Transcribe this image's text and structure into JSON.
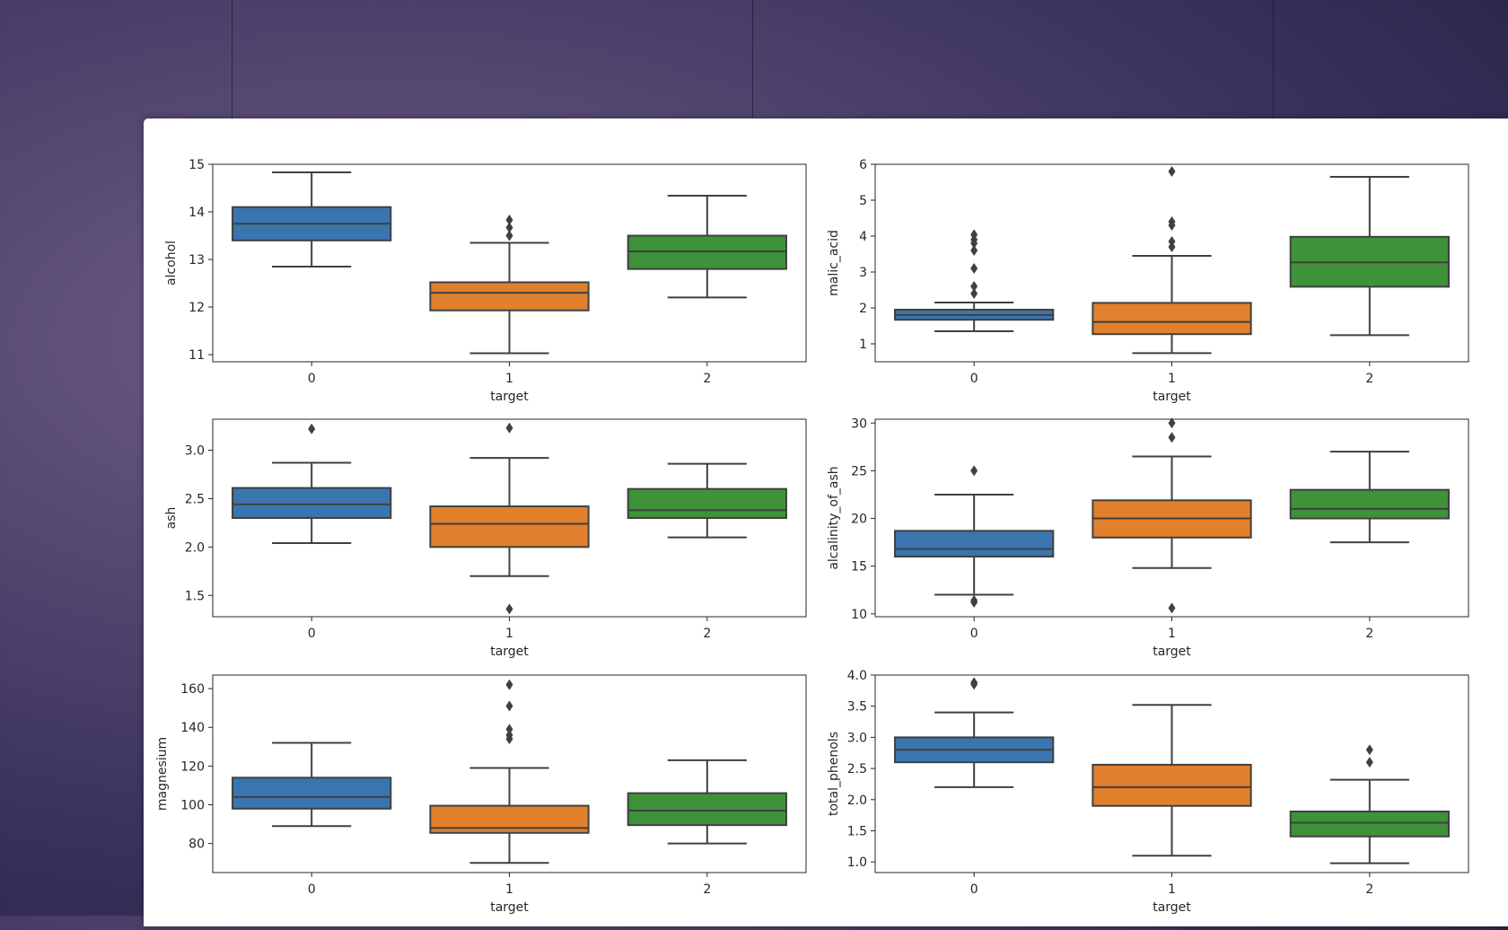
{
  "chart_data": [
    {
      "type": "box",
      "ylabel": "alcohol",
      "xlabel": "target",
      "categories": [
        "0",
        "1",
        "2"
      ],
      "ylim": [
        10.85,
        15.0
      ],
      "yticks": [
        11,
        12,
        13,
        14,
        15
      ],
      "boxes": [
        {
          "whislo": 12.85,
          "q1": 13.4,
          "med": 13.75,
          "q3": 14.1,
          "whishi": 14.83,
          "fliers": []
        },
        {
          "whislo": 11.03,
          "q1": 11.93,
          "med": 12.3,
          "q3": 12.52,
          "whishi": 13.35,
          "fliers": [
            13.5,
            13.67,
            13.83
          ]
        },
        {
          "whislo": 12.2,
          "q1": 12.8,
          "med": 13.17,
          "q3": 13.5,
          "whishi": 14.34,
          "fliers": []
        }
      ]
    },
    {
      "type": "box",
      "ylabel": "malic_acid",
      "xlabel": "target",
      "categories": [
        "0",
        "1",
        "2"
      ],
      "ylim": [
        0.5,
        6.0
      ],
      "yticks": [
        1,
        2,
        3,
        4,
        5,
        6
      ],
      "boxes": [
        {
          "whislo": 1.35,
          "q1": 1.67,
          "med": 1.8,
          "q3": 1.95,
          "whishi": 2.15,
          "fliers": [
            2.4,
            2.6,
            3.1,
            3.6,
            3.8,
            3.9,
            4.04
          ]
        },
        {
          "whislo": 0.74,
          "q1": 1.27,
          "med": 1.61,
          "q3": 2.14,
          "whishi": 3.45,
          "fliers": [
            3.7,
            3.85,
            4.3,
            4.4,
            5.8
          ]
        },
        {
          "whislo": 1.24,
          "q1": 2.59,
          "med": 3.27,
          "q3": 3.98,
          "whishi": 5.65,
          "fliers": []
        }
      ]
    },
    {
      "type": "box",
      "ylabel": "ash",
      "xlabel": "target",
      "categories": [
        "0",
        "1",
        "2"
      ],
      "ylim": [
        1.28,
        3.32
      ],
      "yticks": [
        1.5,
        2.0,
        2.5,
        3.0
      ],
      "ytick_labels": [
        "1.5",
        "2.0",
        "2.5",
        "3.0"
      ],
      "boxes": [
        {
          "whislo": 2.04,
          "q1": 2.3,
          "med": 2.44,
          "q3": 2.61,
          "whishi": 2.87,
          "fliers": [
            3.22
          ]
        },
        {
          "whislo": 1.7,
          "q1": 2.0,
          "med": 2.24,
          "q3": 2.42,
          "whishi": 2.92,
          "fliers": [
            1.36,
            3.23
          ]
        },
        {
          "whislo": 2.1,
          "q1": 2.3,
          "med": 2.38,
          "q3": 2.6,
          "whishi": 2.86,
          "fliers": []
        }
      ]
    },
    {
      "type": "box",
      "ylabel": "alcalinity_of_ash",
      "xlabel": "target",
      "categories": [
        "0",
        "1",
        "2"
      ],
      "ylim": [
        9.7,
        30.4
      ],
      "yticks": [
        10,
        15,
        20,
        25,
        30
      ],
      "boxes": [
        {
          "whislo": 12.0,
          "q1": 16.0,
          "med": 16.8,
          "q3": 18.7,
          "whishi": 22.5,
          "fliers": [
            11.2,
            11.4,
            25.0
          ]
        },
        {
          "whislo": 14.8,
          "q1": 18.0,
          "med": 20.0,
          "q3": 21.9,
          "whishi": 26.5,
          "fliers": [
            10.6,
            28.5,
            30.0
          ]
        },
        {
          "whislo": 17.5,
          "q1": 20.0,
          "med": 21.0,
          "q3": 23.0,
          "whishi": 27.0,
          "fliers": []
        }
      ]
    },
    {
      "type": "box",
      "ylabel": "magnesium",
      "xlabel": "target",
      "categories": [
        "0",
        "1",
        "2"
      ],
      "ylim": [
        65,
        167
      ],
      "yticks": [
        80,
        100,
        120,
        140,
        160
      ],
      "boxes": [
        {
          "whislo": 89,
          "q1": 98,
          "med": 104,
          "q3": 114,
          "whishi": 132,
          "fliers": []
        },
        {
          "whislo": 70,
          "q1": 85.5,
          "med": 88,
          "q3": 99.5,
          "whishi": 119,
          "fliers": [
            134,
            136,
            139,
            151,
            162
          ]
        },
        {
          "whislo": 80,
          "q1": 89.5,
          "med": 97,
          "q3": 106,
          "whishi": 123,
          "fliers": []
        }
      ]
    },
    {
      "type": "box",
      "ylabel": "total_phenols",
      "xlabel": "target",
      "categories": [
        "0",
        "1",
        "2"
      ],
      "ylim": [
        0.83,
        4.0
      ],
      "yticks": [
        1.0,
        1.5,
        2.0,
        2.5,
        3.0,
        3.5,
        4.0
      ],
      "ytick_labels": [
        "1.0",
        "1.5",
        "2.0",
        "2.5",
        "3.0",
        "3.5",
        "4.0"
      ],
      "boxes": [
        {
          "whislo": 2.2,
          "q1": 2.6,
          "med": 2.8,
          "q3": 3.0,
          "whishi": 3.4,
          "fliers": [
            3.85,
            3.88
          ]
        },
        {
          "whislo": 1.1,
          "q1": 1.9,
          "med": 2.2,
          "q3": 2.56,
          "whishi": 3.52,
          "fliers": []
        },
        {
          "whislo": 0.98,
          "q1": 1.41,
          "med": 1.63,
          "q3": 1.81,
          "whishi": 2.32,
          "fliers": [
            2.6,
            2.8
          ]
        }
      ]
    }
  ],
  "colors": {
    "box": [
      "#3a75af",
      "#e1802d",
      "#3d923a"
    ],
    "line": "#404040",
    "axis": "#262626"
  }
}
